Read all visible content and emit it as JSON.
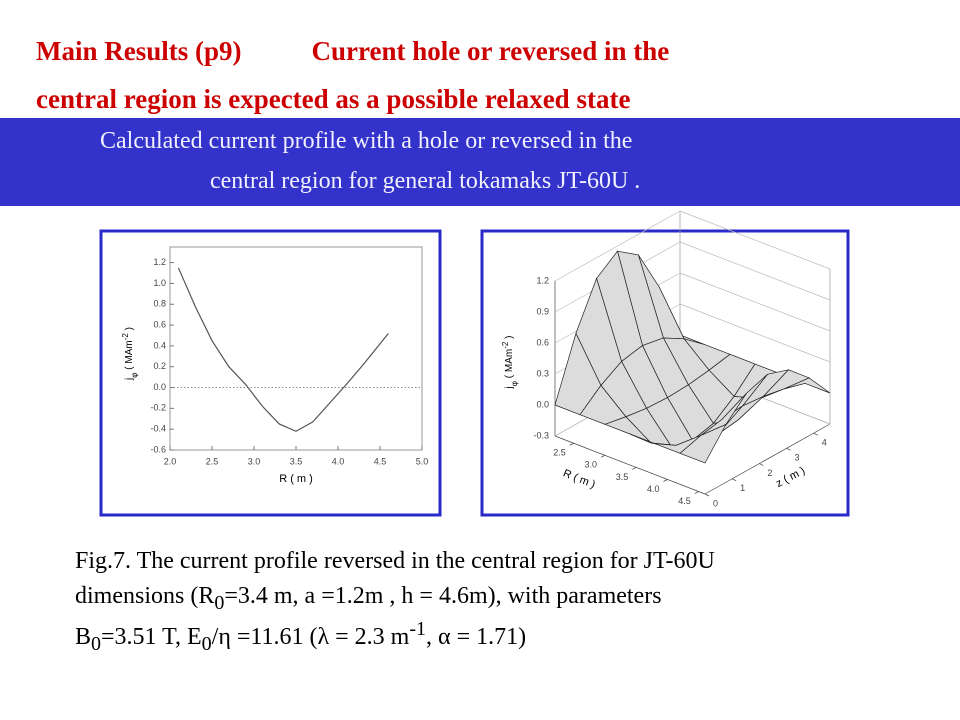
{
  "header": {
    "title_lead": "Main Results (p9)",
    "title_rest": "Current hole or reversed in the",
    "title_line2": "central region is expected as a possible relaxed state"
  },
  "banner": {
    "line1": "Calculated current profile with a hole or reversed in the",
    "line2": "central region for general tokamaks JT-60U ."
  },
  "chart_data": [
    {
      "type": "line",
      "color": "#555555",
      "x": [
        2.1,
        2.3,
        2.5,
        2.7,
        2.9,
        3.1,
        3.3,
        3.5,
        3.7,
        3.9,
        4.1,
        4.3,
        4.5,
        4.6
      ],
      "values": [
        1.15,
        0.78,
        0.45,
        0.2,
        0.03,
        -0.18,
        -0.35,
        -0.42,
        -0.33,
        -0.15,
        0.03,
        0.22,
        0.42,
        0.52
      ],
      "hline": 0,
      "xlim": [
        2.0,
        5.0
      ],
      "ylim": [
        -0.6,
        1.35
      ],
      "xticks": [
        {
          "value": 2,
          "label": "2.0"
        },
        2.5,
        {
          "value": 3,
          "label": "3.0"
        },
        3.5,
        {
          "value": 4,
          "label": "4.0"
        },
        4.5,
        {
          "value": 5,
          "label": "5.0"
        }
      ],
      "yticks": [
        -0.6,
        -0.4,
        -0.2,
        {
          "value": 0,
          "label": "0.0"
        },
        0.2,
        0.4,
        0.6,
        0.8,
        {
          "value": 1,
          "label": "1.0"
        },
        1.2
      ],
      "xlabel": "R ( m )",
      "ylabel": [
        {
          "text": "j"
        },
        {
          "sub": "φ"
        },
        {
          "text": " ( MAm"
        },
        {
          "sup": "-2"
        },
        {
          "text": " )"
        }
      ]
    },
    {
      "type": "surface",
      "R": [
        2.2,
        2.6,
        3.0,
        3.4,
        3.8,
        4.2,
        4.6
      ],
      "z": [
        0,
        0.77,
        1.53,
        2.3,
        3.07,
        3.83,
        4.6
      ],
      "values": [
        [
          0,
          0.58,
          1.0,
          1.15,
          1.0,
          0.58,
          0
        ],
        [
          0,
          0.17,
          0.29,
          0.33,
          0.29,
          0.17,
          0
        ],
        [
          0,
          -0.04,
          -0.07,
          -0.08,
          -0.07,
          -0.04,
          0
        ],
        [
          0,
          -0.2,
          -0.35,
          -0.4,
          -0.35,
          -0.2,
          0
        ],
        [
          0,
          -0.13,
          -0.22,
          -0.25,
          -0.22,
          -0.13,
          0
        ],
        [
          0,
          0.06,
          0.1,
          0.12,
          0.1,
          0.06,
          0
        ],
        [
          0,
          0.26,
          0.45,
          0.52,
          0.45,
          0.26,
          0
        ]
      ],
      "xlim": [
        2.2,
        4.6
      ],
      "zlim": [
        0,
        4.6
      ],
      "ylim": [
        -0.3,
        1.2
      ],
      "xticks": [
        2.5,
        {
          "value": 3,
          "label": "3.0"
        },
        3.5,
        {
          "value": 4,
          "label": "4.0"
        },
        4.5
      ],
      "zticks": [
        0,
        1,
        2,
        3,
        4
      ],
      "yticks": [
        -0.3,
        {
          "value": 0,
          "label": "0.0"
        },
        0.3,
        0.6,
        0.9,
        1.2
      ],
      "xlabel": "R ( m )",
      "zlabel": "z ( m )",
      "ylabel": [
        {
          "text": "j"
        },
        {
          "sub": "φ"
        },
        {
          "text": " ( MAm"
        },
        {
          "sup": "-2"
        },
        {
          "text": " )"
        }
      ]
    }
  ],
  "caption": [
    [
      {
        "text": "Fig.7. The current profile reversed in the central region for JT-60U"
      }
    ],
    [
      {
        "text": "dimensions (R"
      },
      {
        "sub": "0"
      },
      {
        "text": "=3.4 m, a =1.2m , h = 4.6m), with parameters"
      }
    ],
    [
      {
        "text": "B"
      },
      {
        "sub": "0"
      },
      {
        "text": "=3.51 T, E"
      },
      {
        "sub": "0"
      },
      {
        "text": "/η =11.61 (λ = 2.3 m"
      },
      {
        "sup": "-1"
      },
      {
        "text": ", α = 1.71)"
      }
    ]
  ]
}
